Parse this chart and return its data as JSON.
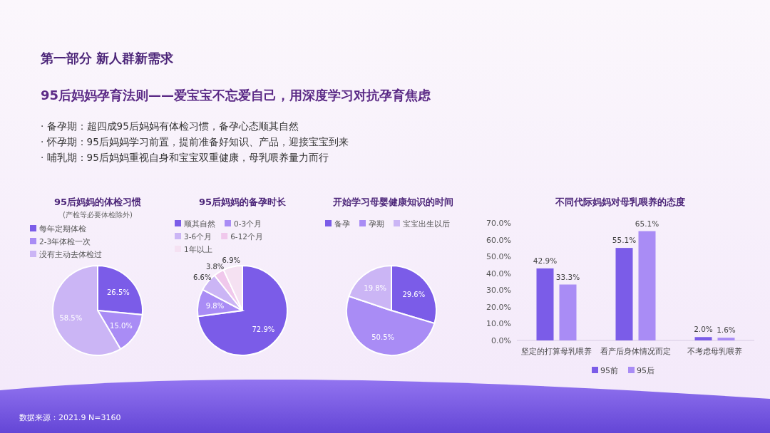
{
  "chart_data": [
    {
      "type": "pie",
      "title": "95后妈妈的体检习惯",
      "subtitle": "(产检等必要体检除外)",
      "categories": [
        "每年定期体检",
        "2-3年体检一次",
        "没有主动去体检过"
      ],
      "values": [
        26.5,
        15.0,
        58.5
      ],
      "colors": [
        "#7b5ce8",
        "#a98cf5",
        "#cbb5f5"
      ],
      "value_labels": [
        "26.5%",
        "15.0%",
        "58.5%"
      ],
      "legend": "top",
      "annotations": [
        "第一部分 新人群新需求",
        "95后妈妈孕育法则——爱宝宝不忘爱自己，用深度学习对抗孕育焦虑",
        "· 备孕期：超四成95后妈妈有体检习惯，备孕心态顺其自然",
        "· 怀孕期：95后妈妈学习前置，提前准备好知识、产品，迎接宝宝到来",
        "· 哺乳期：95后妈妈重视自身和宝宝双重健康，母乳喂养量力而行",
        "数据来源：2021.9  N=3160"
      ]
    },
    {
      "type": "pie",
      "title": "95后妈妈的备孕时长",
      "categories": [
        "顺其自然",
        "0-3个月",
        "3-6个月",
        "6-12个月",
        "1年以上"
      ],
      "values": [
        72.9,
        9.8,
        6.6,
        3.8,
        6.9
      ],
      "colors": [
        "#7b5ce8",
        "#a98cf5",
        "#cbb5f5",
        "#f0c8ec",
        "#f5e1f2"
      ],
      "value_labels": [
        "72.9%",
        "9.8%",
        "6.6%",
        "3.8%",
        "6.9%"
      ],
      "legend": "top"
    },
    {
      "type": "pie",
      "title": "开始学习母婴健康知识的时间",
      "categories": [
        "备孕",
        "孕期",
        "宝宝出生以后"
      ],
      "values": [
        29.6,
        50.5,
        19.8
      ],
      "colors": [
        "#7b5ce8",
        "#a98cf5",
        "#cbb5f5"
      ],
      "value_labels": [
        "29.6%",
        "50.5%",
        "19.8%"
      ],
      "legend": "top"
    },
    {
      "type": "bar",
      "title": "不同代际妈妈对母乳喂养的态度",
      "categories": [
        "坚定的打算母乳喂养",
        "看产后身体情况而定",
        "不考虑母乳喂养"
      ],
      "series": [
        {
          "name": "95前",
          "color": "#7b5ce8",
          "values": [
            42.9,
            55.1,
            2.0
          ],
          "value_labels": [
            "42.9%",
            "55.1%",
            "2.0%"
          ]
        },
        {
          "name": "95后",
          "color": "#a98cf5",
          "values": [
            33.3,
            65.1,
            1.6
          ],
          "value_labels": [
            "33.3%",
            "65.1%",
            "1.6%"
          ]
        }
      ],
      "ylim": [
        0,
        70
      ],
      "yticks": [
        {
          "value": 0,
          "label": "0.0%"
        },
        {
          "value": 10,
          "label": "10.0%"
        },
        {
          "value": 20,
          "label": "20.0%"
        },
        {
          "value": 30,
          "label": "30.0%"
        },
        {
          "value": 40,
          "label": "40.0%"
        },
        {
          "value": 50,
          "label": "50.0%"
        },
        {
          "value": 60,
          "label": "60.0%"
        },
        {
          "value": 70,
          "label": "70.0%"
        }
      ],
      "grid": false,
      "legend": "bottom"
    }
  ]
}
